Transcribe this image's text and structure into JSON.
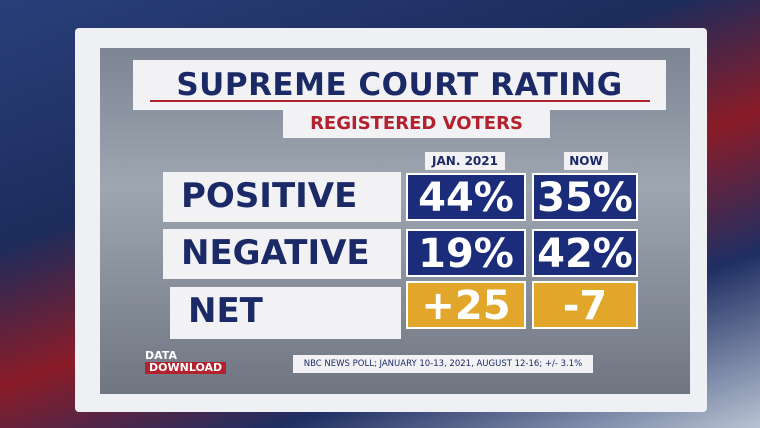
{
  "header": {
    "title": "SUPREME COURT RATING",
    "subtitle": "REGISTERED VOTERS"
  },
  "table": {
    "columns": [
      "JAN. 2021",
      "NOW"
    ],
    "rows": [
      [
        "POSITIVE",
        "44%",
        "35%"
      ],
      [
        "NEGATIVE",
        "19%",
        "42%"
      ],
      [
        "NET",
        "+25",
        "-7"
      ]
    ]
  },
  "branding": {
    "line1": "DATA",
    "line2": "DOWNLOAD"
  },
  "source": "NBC NEWS POLL; JANUARY 10-13, 2021, AUGUST 12-16; +/- 3.1%"
}
